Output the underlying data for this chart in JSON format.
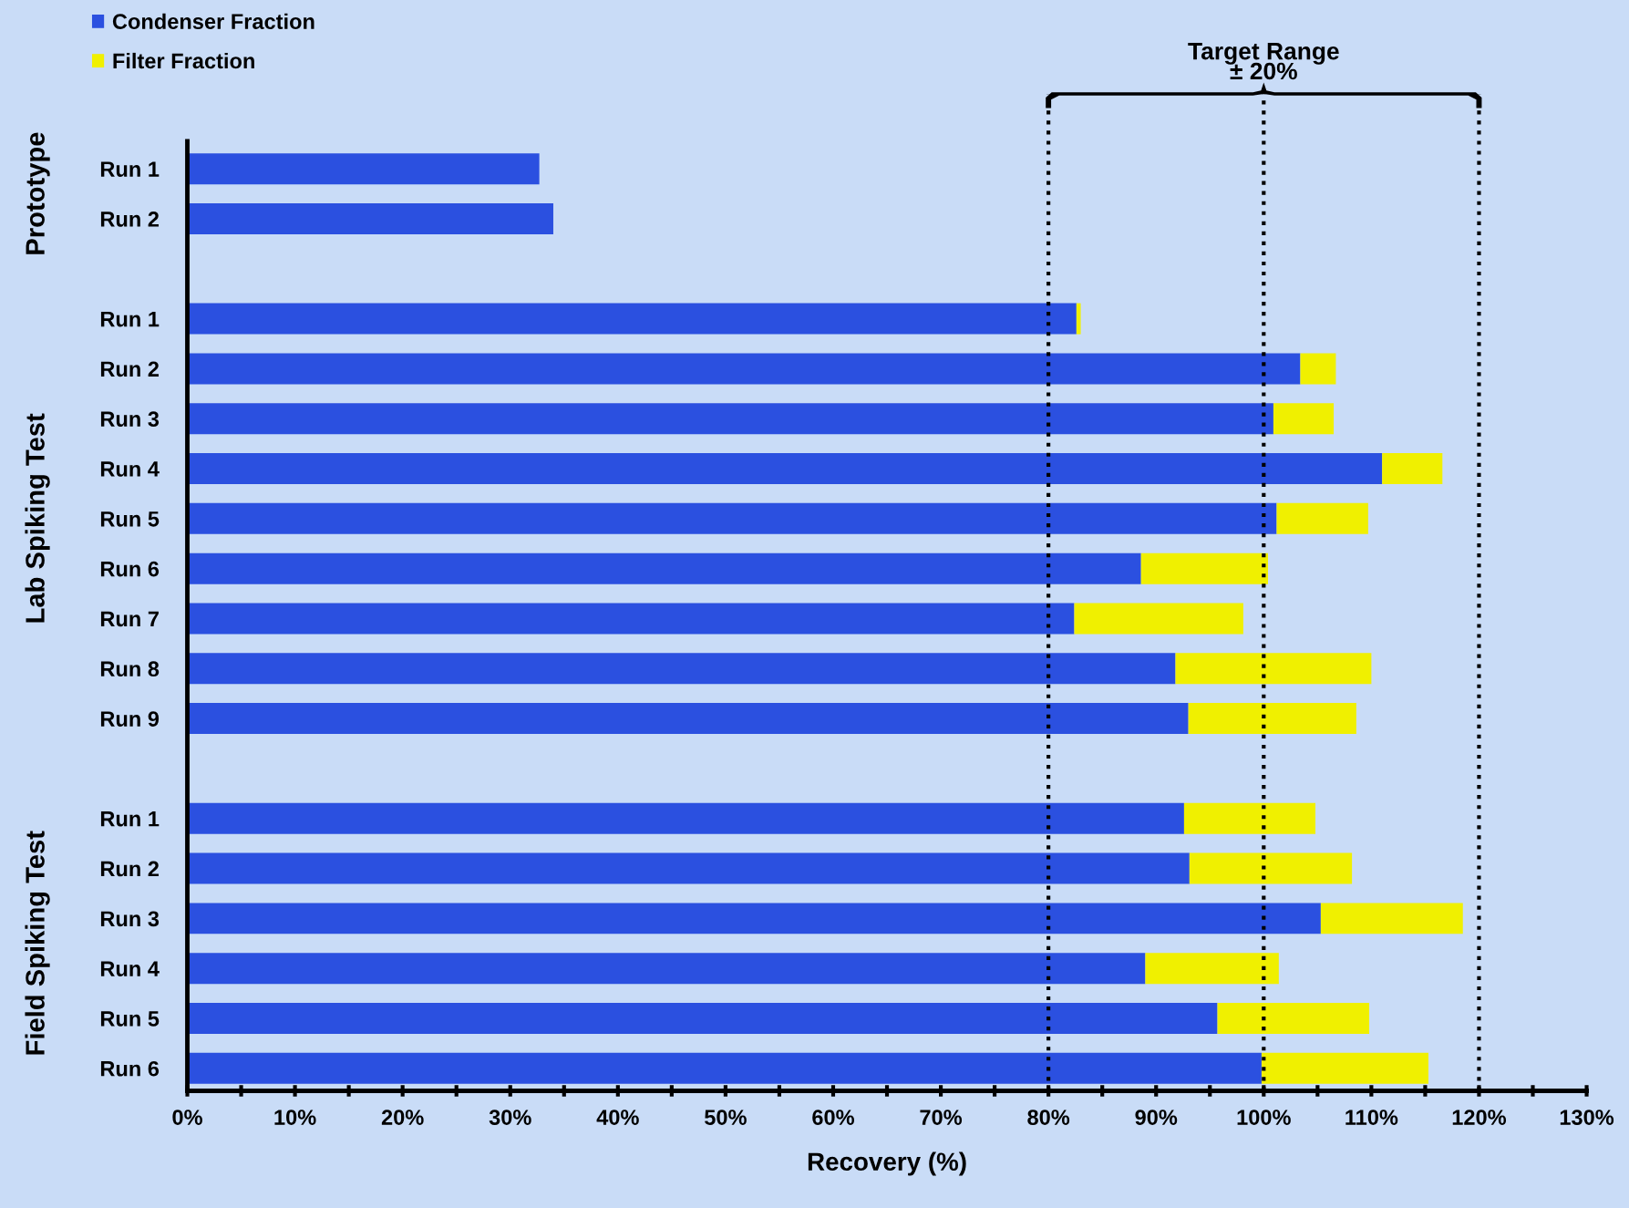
{
  "chart_data": {
    "type": "bar",
    "orientation": "horizontal",
    "stacked": true,
    "categories": [
      "Run 1",
      "Run 2",
      null,
      "Run 1",
      "Run 2",
      "Run 3",
      "Run 4",
      "Run 5",
      "Run 6",
      "Run 7",
      "Run 8",
      "Run 9",
      null,
      "Run 1",
      "Run 2",
      "Run 3",
      "Run 4",
      "Run 5",
      "Run 6"
    ],
    "series": [
      {
        "name": "Condenser Fraction",
        "color": "#2b50e0",
        "values": [
          32.7,
          34.0,
          null,
          82.6,
          103.4,
          100.9,
          111.0,
          101.2,
          88.6,
          82.4,
          91.8,
          93.0,
          null,
          92.6,
          93.1,
          105.3,
          89.0,
          95.7,
          99.8
        ]
      },
      {
        "name": "Filter Fraction",
        "color": "#f0f000",
        "values": [
          null,
          null,
          null,
          0.4,
          3.3,
          5.6,
          5.6,
          8.5,
          11.8,
          15.7,
          18.2,
          15.6,
          null,
          12.2,
          15.1,
          13.2,
          12.4,
          14.1,
          15.5
        ]
      }
    ],
    "xlabel": "Recovery (%)",
    "xlim": [
      0,
      130
    ],
    "xticks": [
      {
        "value": 0,
        "label": "0%"
      },
      {
        "value": 5,
        "label": null
      },
      {
        "value": 10,
        "label": "10%"
      },
      {
        "value": 15,
        "label": null
      },
      {
        "value": 20,
        "label": "20%"
      },
      {
        "value": 25,
        "label": null
      },
      {
        "value": 30,
        "label": "30%"
      },
      {
        "value": 35,
        "label": null
      },
      {
        "value": 40,
        "label": "40%"
      },
      {
        "value": 45,
        "label": null
      },
      {
        "value": 50,
        "label": "50%"
      },
      {
        "value": 55,
        "label": null
      },
      {
        "value": 60,
        "label": "60%"
      },
      {
        "value": 65,
        "label": null
      },
      {
        "value": 70,
        "label": "70%"
      },
      {
        "value": 75,
        "label": null
      },
      {
        "value": 80,
        "label": "80%"
      },
      {
        "value": 85,
        "label": null
      },
      {
        "value": 90,
        "label": "90%"
      },
      {
        "value": 95,
        "label": null
      },
      {
        "value": 100,
        "label": "100%"
      },
      {
        "value": 105,
        "label": null
      },
      {
        "value": 110,
        "label": "110%"
      },
      {
        "value": 115,
        "label": null
      },
      {
        "value": 120,
        "label": "120%"
      },
      {
        "value": 125,
        "label": null
      },
      {
        "value": 130,
        "label": "130%"
      }
    ],
    "ref_lines": [
      {
        "axis": "x",
        "value": 80,
        "color": "#000000",
        "line_style": "dotted"
      },
      {
        "axis": "x",
        "value": 100,
        "color": "#000000",
        "line_style": "dotted"
      },
      {
        "axis": "x",
        "value": 120,
        "color": "#000000",
        "line_style": "dotted"
      }
    ],
    "annotations": [
      "Prototype",
      "Lab Spiking Test",
      "Field Spiking Test",
      "Target Range\n± 20%"
    ],
    "legend": "top left",
    "grid": false
  }
}
